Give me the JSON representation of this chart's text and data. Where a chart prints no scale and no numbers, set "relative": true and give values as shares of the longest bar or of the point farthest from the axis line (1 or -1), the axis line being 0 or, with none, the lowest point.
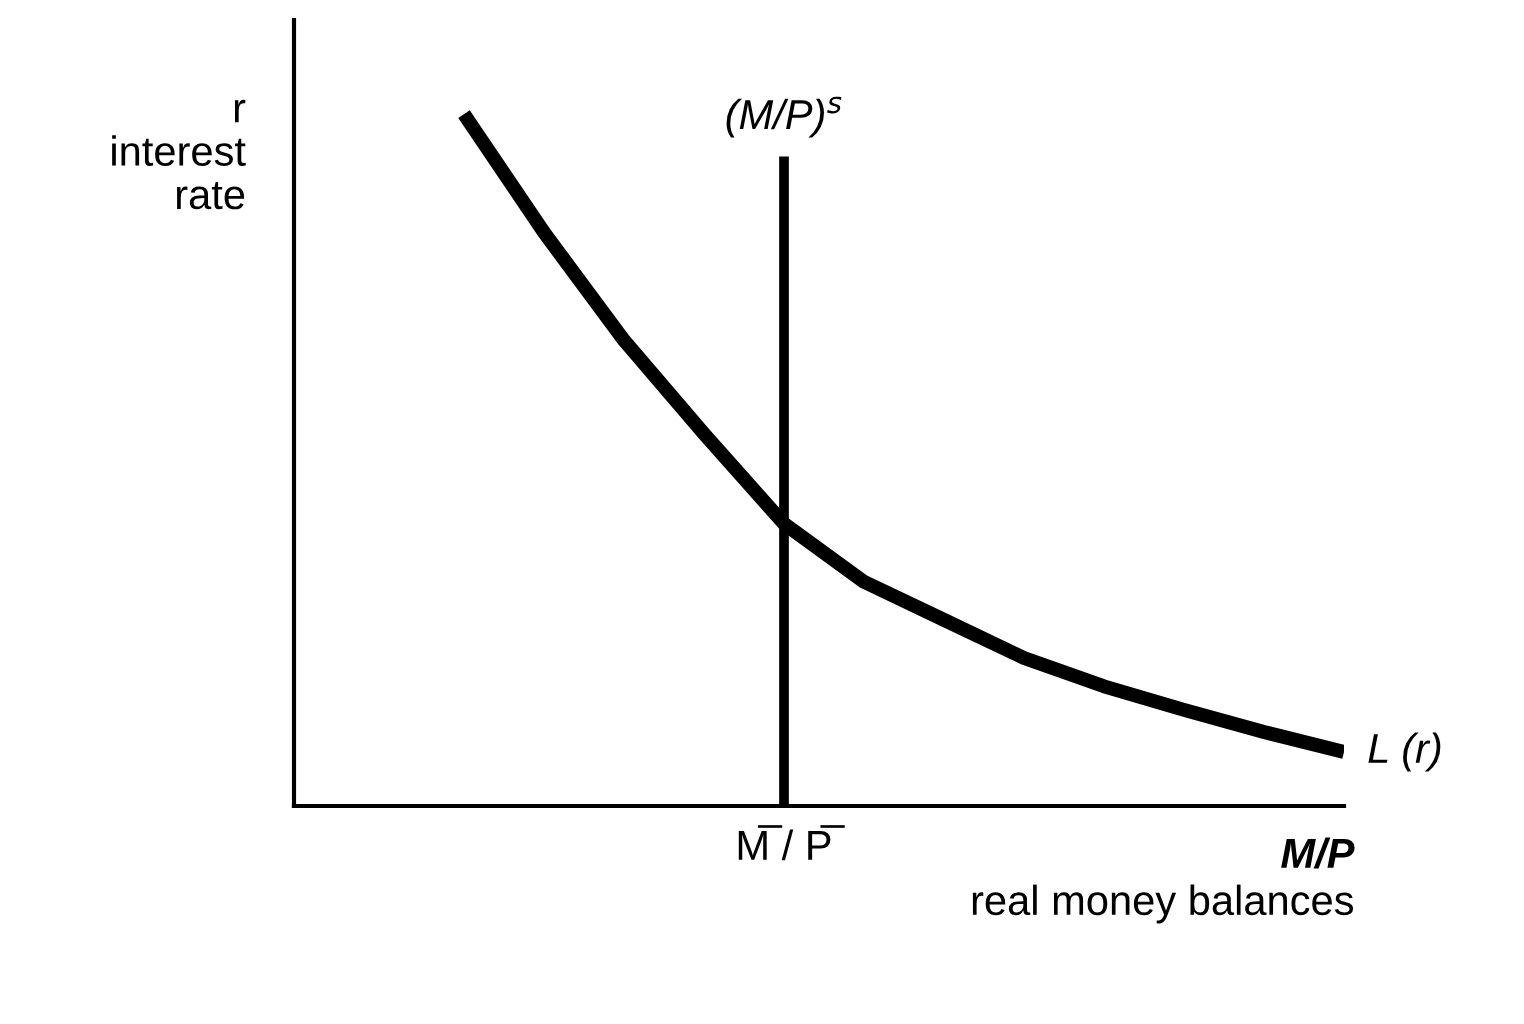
{
  "chart_data": {
    "type": "line",
    "relative": true,
    "legend": false,
    "marker": "none",
    "line_style": "solid",
    "ylabel": "r\ninterest\nrate",
    "xlabel": "M/P",
    "annotations": [
      "real money balances",
      "M̅ / P̅",
      "(M/P)$^{s}$"
    ],
    "categories": [
      null,
      null,
      null,
      null,
      null,
      null,
      null,
      null,
      null,
      null,
      null,
      null,
      null,
      null
    ],
    "series": [
      {
        "name": "L (r)",
        "color": "#000000",
        "values": [
          null,
          null,
          1,
          0.829,
          0.673,
          0.538,
          0.408,
          0.324,
          0.269,
          0.214,
          0.173,
          0.139,
          0.107,
          0.078
        ]
      }
    ]
  }
}
